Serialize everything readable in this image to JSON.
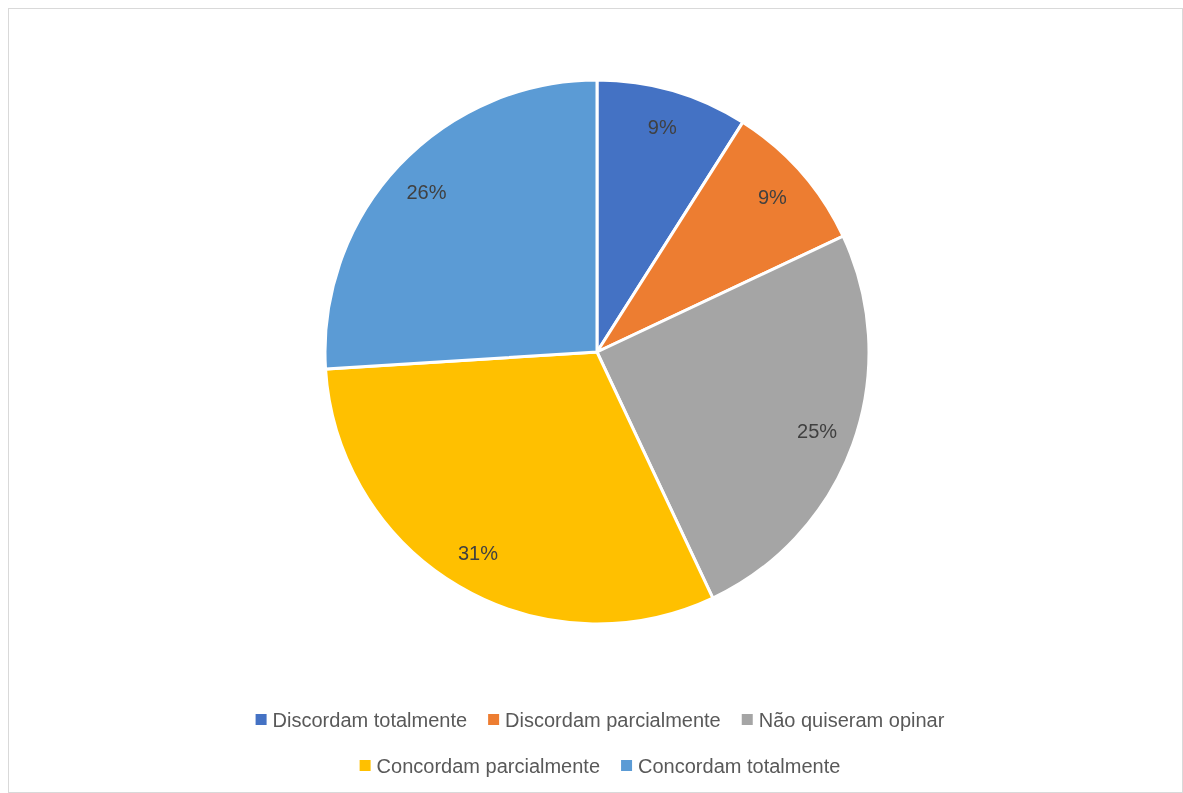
{
  "chart_data": {
    "type": "pie",
    "categories": [
      "Discordam totalmente",
      "Discordam parcialmente",
      "Não quiseram opinar",
      "Concordam parcialmente",
      "Concordam totalmente"
    ],
    "values": [
      9,
      9,
      25,
      31,
      26
    ],
    "colors": [
      "#4472c4",
      "#ed7d31",
      "#a5a5a5",
      "#ffc000",
      "#5b9bd5"
    ],
    "value_labels": [
      "9%",
      "9%",
      "25%",
      "31%",
      "26%"
    ],
    "legend": "bottom"
  }
}
